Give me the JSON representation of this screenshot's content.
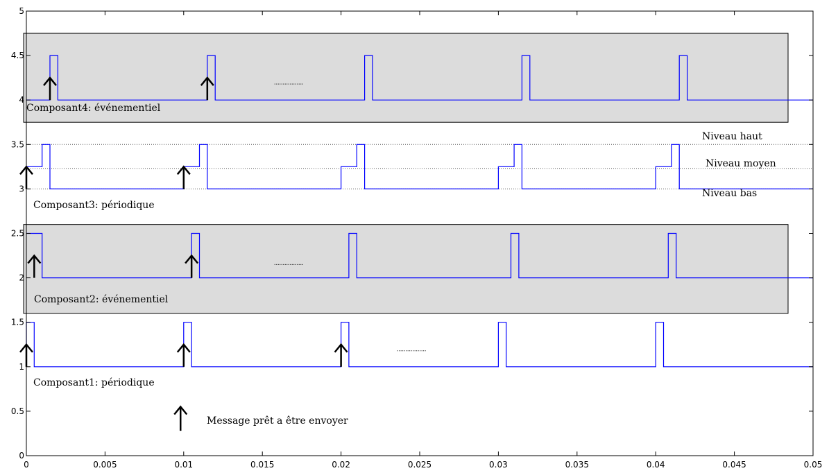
{
  "chart_data": {
    "type": "line",
    "title": "",
    "xlabel": "",
    "ylabel": "",
    "xlim": [
      0,
      0.05
    ],
    "ylim": [
      0,
      5
    ],
    "grid": false,
    "x_ticks": [
      0,
      0.005,
      0.01,
      0.015,
      0.02,
      0.025,
      0.03,
      0.035,
      0.04,
      0.045,
      0.05
    ],
    "x_tick_labels": [
      "0",
      "0.005",
      "0.01",
      "0.015",
      "0.02",
      "0.025",
      "0.03",
      "0.035",
      "0.04",
      "0.045",
      "0.05"
    ],
    "y_ticks": [
      0,
      0.5,
      1,
      1.5,
      2,
      2.5,
      3,
      3.5,
      4,
      4.5,
      5
    ],
    "y_tick_labels": [
      "0",
      "0.5",
      "1",
      "1.5",
      "2",
      "2.5",
      "3",
      "3.5",
      "4",
      "4.5",
      "5"
    ],
    "line_color": "#0000ff",
    "shaded_color": "#dcdcdc",
    "series": [
      {
        "label": "Composant1: périodique",
        "x": [
          0,
          0,
          0.0005,
          0.0005,
          0.01,
          0.01,
          0.0105,
          0.0105,
          0.02,
          0.02,
          0.0205,
          0.0205,
          0.03,
          0.03,
          0.0305,
          0.0305,
          0.04,
          0.04,
          0.0405,
          0.0405,
          0.05
        ],
        "y": [
          1,
          1.5,
          1.5,
          1,
          1,
          1.5,
          1.5,
          1,
          1,
          1.5,
          1.5,
          1,
          1,
          1.5,
          1.5,
          1,
          1,
          1.5,
          1.5,
          1,
          1
        ]
      },
      {
        "label": "Composant2: événementiel",
        "shaded": true,
        "band": [
          1.6,
          2.6
        ],
        "x": [
          0,
          0.0005,
          0.0005,
          0.001,
          0.001,
          0.0105,
          0.0105,
          0.011,
          0.011,
          0.0205,
          0.0205,
          0.021,
          0.021,
          0.0308,
          0.0308,
          0.0313,
          0.0313,
          0.0408,
          0.0408,
          0.0413,
          0.0413,
          0.05
        ],
        "y": [
          2.5,
          2.5,
          2.5,
          2.5,
          2,
          2,
          2.5,
          2.5,
          2,
          2,
          2.5,
          2.5,
          2,
          2,
          2.5,
          2.5,
          2,
          2,
          2.5,
          2.5,
          2,
          2
        ]
      },
      {
        "label": "Composant3: périodique",
        "x": [
          0,
          0,
          0.001,
          0.001,
          0.0015,
          0.0015,
          0.01,
          0.01,
          0.011,
          0.011,
          0.0115,
          0.0115,
          0.02,
          0.02,
          0.021,
          0.021,
          0.0215,
          0.0215,
          0.03,
          0.03,
          0.031,
          0.031,
          0.0315,
          0.0315,
          0.04,
          0.04,
          0.041,
          0.041,
          0.0415,
          0.0415,
          0.05
        ],
        "y": [
          3,
          3.25,
          3.25,
          3.5,
          3.5,
          3,
          3,
          3.25,
          3.25,
          3.5,
          3.5,
          3,
          3,
          3.25,
          3.25,
          3.5,
          3.5,
          3,
          3,
          3.25,
          3.25,
          3.5,
          3.5,
          3,
          3,
          3.25,
          3.25,
          3.5,
          3.5,
          3,
          3
        ]
      },
      {
        "label": "Composant4: événementiel",
        "shaded": true,
        "band": [
          3.75,
          4.75
        ],
        "x": [
          0,
          0.0015,
          0.0015,
          0.002,
          0.002,
          0.0115,
          0.0115,
          0.012,
          0.012,
          0.0215,
          0.0215,
          0.022,
          0.022,
          0.0315,
          0.0315,
          0.032,
          0.032,
          0.0415,
          0.0415,
          0.042,
          0.042,
          0.05
        ],
        "y": [
          4,
          4,
          4.5,
          4.5,
          4,
          4,
          4.5,
          4.5,
          4,
          4,
          4.5,
          4.5,
          4,
          4,
          4.5,
          4.5,
          4,
          4,
          4.5,
          4.5,
          4,
          4
        ]
      }
    ],
    "levels": [
      {
        "label": "Niveau haut",
        "y": 3.5
      },
      {
        "label": "Niveau moyen",
        "y": 3.23
      },
      {
        "label": "Niveau bas",
        "y": 3.0
      }
    ],
    "message_arrows": [
      {
        "x": 0.0015,
        "y_base": 4.0,
        "y_tip": 4.25
      },
      {
        "x": 0.0115,
        "y_base": 4.0,
        "y_tip": 4.25
      },
      {
        "x": 0.0005,
        "y_base": 2.0,
        "y_tip": 2.25
      },
      {
        "x": 0.0105,
        "y_base": 2.0,
        "y_tip": 2.25
      },
      {
        "x": 0.0,
        "y_base": 3.0,
        "y_tip": 3.25
      },
      {
        "x": 0.01,
        "y_base": 3.0,
        "y_tip": 3.25
      },
      {
        "x": 0.0,
        "y_base": 1.0,
        "y_tip": 1.25
      },
      {
        "x": 0.01,
        "y_base": 1.0,
        "y_tip": 1.25
      },
      {
        "x": 0.02,
        "y_base": 1.0,
        "y_tip": 1.25
      }
    ],
    "ellipses": [
      {
        "x": 0.0167,
        "y": 4.18
      },
      {
        "x": 0.0167,
        "y": 2.15
      },
      {
        "x": 0.0245,
        "y": 1.18
      }
    ],
    "legend": {
      "label": "Message prêt a être envoyer",
      "arrow_x": 0.0098,
      "y_base": 0.28,
      "y_tip": 0.55
    }
  }
}
